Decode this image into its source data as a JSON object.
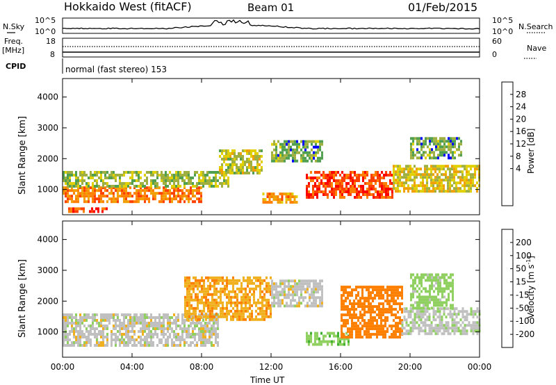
{
  "header": {
    "title": "Hokkaido West (fitACF)",
    "beam": "Beam 01",
    "date": "01/Feb/2015"
  },
  "top_panels": {
    "nsky_label": "N.Sky",
    "nsky_scale_top": "10^5",
    "nsky_scale_bottom": "10^0",
    "nsearch_label": "N.Search",
    "nsearch_scale_top": "10^5",
    "nsearch_scale_bottom": "10^0",
    "freq_label": "Freq.",
    "freq_unit": "[MHz]",
    "freq_ticks": [
      "18",
      "8"
    ],
    "nave_label": "Nave",
    "nave_ticks": [
      "60",
      "0"
    ],
    "cpid_label": "CPID",
    "cpid_value": "normal (fast stereo) 153"
  },
  "chart_data": [
    {
      "type": "heatmap",
      "panel": "power",
      "ylabel": "Slant Range [km]",
      "yticks": [
        1000,
        2000,
        3000,
        4000
      ],
      "ylim": [
        180,
        4600
      ],
      "xlim_hours": [
        0,
        24
      ],
      "colorbar_label": "Power [dB]",
      "colorbar_ticks": [
        "28",
        "24",
        "20",
        "16",
        "12",
        "8",
        "4"
      ],
      "colorbar_colors": [
        "#ff0000",
        "#ff4000",
        "#ff8000",
        "#f0a000",
        "#e0d000",
        "#a0b040",
        "#50a050",
        "#307070",
        "#2050a0",
        "#0000ff"
      ],
      "regions": [
        {
          "t0": 0.0,
          "t1": 8.0,
          "r0": 600,
          "r1": 1100,
          "level": 22
        },
        {
          "t0": 0.0,
          "t1": 9.5,
          "r0": 1100,
          "r1": 1600,
          "level": 10
        },
        {
          "t0": 0.2,
          "t1": 2.5,
          "r0": 250,
          "r1": 420,
          "level": 26
        },
        {
          "t0": 9.0,
          "t1": 11.5,
          "r0": 1500,
          "r1": 2300,
          "level": 12
        },
        {
          "t0": 11.5,
          "t1": 13.5,
          "r0": 600,
          "r1": 900,
          "level": 20
        },
        {
          "t0": 14.0,
          "t1": 19.0,
          "r0": 700,
          "r1": 1600,
          "level": 26
        },
        {
          "t0": 12.0,
          "t1": 15.0,
          "r0": 1900,
          "r1": 2600,
          "level": 8
        },
        {
          "t0": 19.0,
          "t1": 24.0,
          "r0": 900,
          "r1": 1800,
          "level": 14
        },
        {
          "t0": 20.0,
          "t1": 23.0,
          "r0": 2000,
          "r1": 2700,
          "level": 8
        }
      ]
    },
    {
      "type": "heatmap",
      "panel": "velocity",
      "ylabel": "Slant Range [km]",
      "yticks": [
        1000,
        2000,
        3000,
        4000
      ],
      "ylim": [
        180,
        4600
      ],
      "xlim_hours": [
        0,
        24
      ],
      "xticks": [
        "00:00",
        "04:00",
        "08:00",
        "12:00",
        "16:00",
        "20:00",
        "00:00"
      ],
      "xlabel": "Time UT",
      "colorbar_label": "Velocity [m s",
      "colorbar_label_sup": "-1",
      "colorbar_label_end": "]",
      "colorbar_ticks": [
        "200",
        "100",
        "50",
        "15",
        "-15",
        "-50",
        "-100",
        "-200"
      ],
      "colorbar_colors": [
        "#2030c0",
        "#208040",
        "#40b030",
        "#90d060",
        "#c0c0c0",
        "#f0b020",
        "#ff8000",
        "#ff4000",
        "#ff0000"
      ],
      "regions": [
        {
          "t0": 0.0,
          "t1": 9.0,
          "r0": 600,
          "r1": 1600,
          "level": 0
        },
        {
          "t0": 7.0,
          "t1": 12.0,
          "r0": 1400,
          "r1": 2800,
          "level": -40
        },
        {
          "t0": 12.0,
          "t1": 15.0,
          "r0": 1800,
          "r1": 2700,
          "level": 0
        },
        {
          "t0": 14.0,
          "t1": 16.5,
          "r0": 600,
          "r1": 1000,
          "level": 40
        },
        {
          "t0": 16.0,
          "t1": 19.5,
          "r0": 800,
          "r1": 2500,
          "level": -70
        },
        {
          "t0": 19.5,
          "t1": 24.0,
          "r0": 900,
          "r1": 1800,
          "level": 5
        },
        {
          "t0": 20.0,
          "t1": 22.5,
          "r0": 1800,
          "r1": 2900,
          "level": 30
        }
      ]
    }
  ]
}
